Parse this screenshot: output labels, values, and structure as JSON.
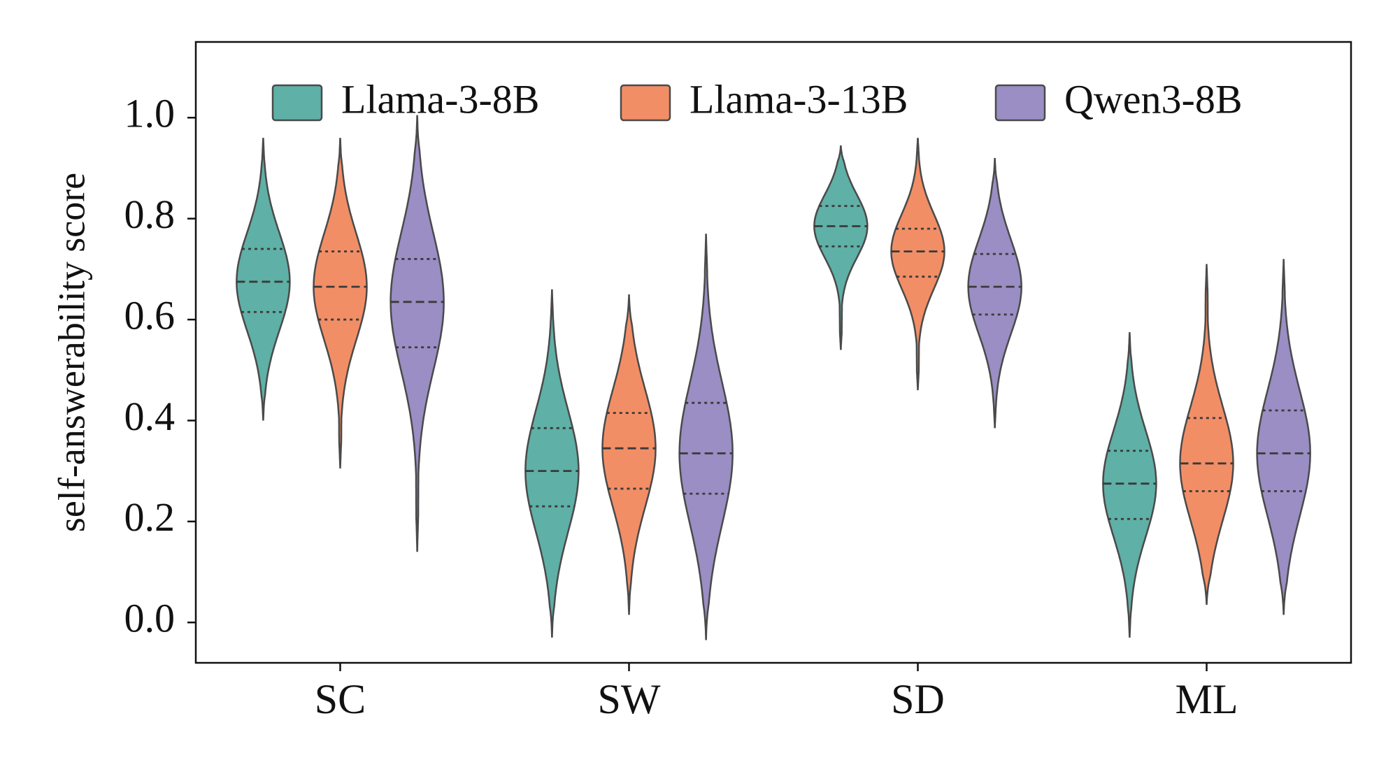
{
  "chart_data": {
    "type": "violin",
    "ylabel": "self-answerability score",
    "xlabel": "",
    "ylim": [
      -0.08,
      1.15
    ],
    "yticks": [
      "0.0",
      "0.2",
      "0.4",
      "0.6",
      "0.8",
      "1.0"
    ],
    "categories": [
      "SC",
      "SW",
      "SD",
      "ML"
    ],
    "legend_position": "top",
    "series": [
      {
        "name": "Llama-3-8B",
        "color": "#5fb0a6",
        "stats": [
          {
            "min": 0.4,
            "q1": 0.615,
            "median": 0.675,
            "q3": 0.74,
            "max": 0.96
          },
          {
            "min": -0.03,
            "q1": 0.23,
            "median": 0.3,
            "q3": 0.385,
            "max": 0.66
          },
          {
            "min": 0.54,
            "q1": 0.745,
            "median": 0.785,
            "q3": 0.825,
            "max": 0.945
          },
          {
            "min": -0.03,
            "q1": 0.205,
            "median": 0.275,
            "q3": 0.34,
            "max": 0.575
          }
        ]
      },
      {
        "name": "Llama-3-13B",
        "color": "#f28e66",
        "stats": [
          {
            "min": 0.305,
            "q1": 0.6,
            "median": 0.665,
            "q3": 0.735,
            "max": 0.96
          },
          {
            "min": 0.015,
            "q1": 0.265,
            "median": 0.345,
            "q3": 0.415,
            "max": 0.65
          },
          {
            "min": 0.46,
            "q1": 0.685,
            "median": 0.735,
            "q3": 0.78,
            "max": 0.96
          },
          {
            "min": 0.035,
            "q1": 0.26,
            "median": 0.315,
            "q3": 0.405,
            "max": 0.71
          }
        ]
      },
      {
        "name": "Qwen3-8B",
        "color": "#9a8ec4",
        "stats": [
          {
            "min": 0.14,
            "q1": 0.545,
            "median": 0.635,
            "q3": 0.72,
            "max": 1.005
          },
          {
            "min": -0.035,
            "q1": 0.255,
            "median": 0.335,
            "q3": 0.435,
            "max": 0.77
          },
          {
            "min": 0.385,
            "q1": 0.61,
            "median": 0.665,
            "q3": 0.73,
            "max": 0.92
          },
          {
            "min": 0.015,
            "q1": 0.26,
            "median": 0.335,
            "q3": 0.42,
            "max": 0.72
          }
        ]
      }
    ]
  }
}
